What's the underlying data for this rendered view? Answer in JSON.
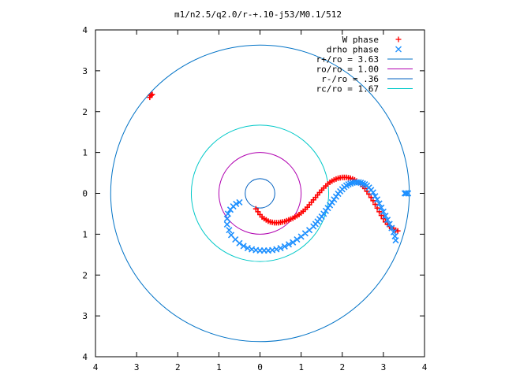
{
  "chart_data": {
    "type": "scatter",
    "title": "m1/n2.5/q2.0/r-+.10-j53/M0.1/512",
    "xlim": [
      -4,
      4
    ],
    "ylim": [
      -4,
      4
    ],
    "x_ticks": [
      -4,
      -3,
      -2,
      -1,
      0,
      1,
      2,
      3,
      4
    ],
    "y_ticks": [
      -4,
      -3,
      -2,
      -1,
      0,
      1,
      2,
      3,
      4
    ],
    "x_tick_labels": [
      "4",
      "3",
      "2",
      "1",
      "0",
      "1",
      "2",
      "3",
      "4"
    ],
    "y_tick_labels": [
      "4",
      "3",
      "2",
      "1",
      "0",
      "1",
      "2",
      "3",
      "4"
    ],
    "grid": false,
    "legend_position": "top-right",
    "legend": [
      {
        "label": "W phase",
        "marker": "+",
        "color": "#ff0000"
      },
      {
        "label": "drho phase",
        "marker": "x",
        "color": "#1e90ff"
      },
      {
        "label": "r+/ro = 3.63",
        "line": true,
        "color": "#0072c6"
      },
      {
        "label": "ro/ro = 1.00",
        "line": true,
        "color": "#b000b0"
      },
      {
        "label": "r-/ro = .36",
        "line": true,
        "color": "#0060c0"
      },
      {
        "label": "rc/ro = 1.67",
        "line": true,
        "color": "#00c8c8"
      }
    ],
    "circles": [
      {
        "name": "r+/ro = 3.63",
        "radius": 3.63,
        "color": "#0072c6"
      },
      {
        "name": "ro/ro = 1.00",
        "radius": 1.0,
        "color": "#b000b0"
      },
      {
        "name": "r-/ro = .36",
        "radius": 0.36,
        "color": "#0060c0"
      },
      {
        "name": "rc/ro = 1.67",
        "radius": 1.67,
        "color": "#00c8c8"
      }
    ],
    "series": [
      {
        "name": "W phase",
        "marker": "+",
        "color": "#ff0000",
        "x": [
          -2.65,
          -2.68,
          -2.62,
          -0.1,
          -0.05,
          0.0,
          0.05,
          0.1,
          0.15,
          0.2,
          0.25,
          0.3,
          0.35,
          0.4,
          0.45,
          0.5,
          0.55,
          0.6,
          0.65,
          0.7,
          0.75,
          0.8,
          0.85,
          0.9,
          0.95,
          1.0,
          1.05,
          1.1,
          1.15,
          1.2,
          1.25,
          1.3,
          1.35,
          1.4,
          1.45,
          1.5,
          1.55,
          1.6,
          1.65,
          1.7,
          1.75,
          1.8,
          1.85,
          1.9,
          1.95,
          2.0,
          2.05,
          2.1,
          2.15,
          2.2,
          2.25,
          2.3,
          2.35,
          2.4,
          2.45,
          2.5,
          2.55,
          2.6,
          2.65,
          2.7,
          2.75,
          2.8,
          2.85,
          2.9,
          2.95,
          3.0,
          3.05,
          3.1,
          3.15,
          3.2,
          3.25,
          3.3,
          3.35
        ],
        "y": [
          2.4,
          2.35,
          2.42,
          -0.38,
          -0.45,
          -0.52,
          -0.58,
          -0.62,
          -0.65,
          -0.68,
          -0.7,
          -0.71,
          -0.72,
          -0.72,
          -0.72,
          -0.71,
          -0.7,
          -0.69,
          -0.67,
          -0.65,
          -0.63,
          -0.61,
          -0.58,
          -0.55,
          -0.52,
          -0.48,
          -0.44,
          -0.39,
          -0.34,
          -0.28,
          -0.22,
          -0.16,
          -0.1,
          -0.04,
          0.02,
          0.08,
          0.13,
          0.18,
          0.23,
          0.27,
          0.3,
          0.33,
          0.35,
          0.37,
          0.38,
          0.39,
          0.39,
          0.39,
          0.38,
          0.37,
          0.35,
          0.33,
          0.3,
          0.26,
          0.22,
          0.17,
          0.12,
          0.05,
          -0.02,
          -0.1,
          -0.18,
          -0.27,
          -0.36,
          -0.45,
          -0.54,
          -0.62,
          -0.7,
          -0.76,
          -0.81,
          -0.85,
          -0.88,
          -0.9,
          -0.92
        ]
      },
      {
        "name": "drho phase",
        "marker": "x",
        "color": "#1e90ff",
        "x": [
          3.55,
          3.6,
          3.52,
          3.3,
          3.28,
          3.25,
          3.2,
          3.15,
          3.1,
          3.05,
          3.0,
          2.95,
          2.9,
          2.85,
          2.8,
          2.75,
          2.7,
          2.65,
          2.6,
          2.55,
          2.5,
          2.45,
          2.4,
          2.35,
          2.3,
          2.25,
          2.2,
          2.15,
          2.1,
          2.05,
          2.0,
          1.95,
          1.9,
          1.85,
          1.8,
          1.75,
          1.7,
          1.65,
          1.6,
          1.55,
          1.5,
          1.45,
          1.4,
          1.35,
          1.3,
          1.2,
          1.1,
          1.0,
          0.9,
          0.8,
          0.7,
          0.6,
          0.5,
          0.4,
          0.3,
          0.2,
          0.1,
          0.0,
          -0.1,
          -0.2,
          -0.3,
          -0.4,
          -0.5,
          -0.6,
          -0.7,
          -0.75,
          -0.8,
          -0.8,
          -0.78,
          -0.72,
          -0.65,
          -0.58,
          -0.5
        ],
        "y": [
          0.0,
          0.0,
          0.0,
          -1.15,
          -1.05,
          -0.95,
          -0.85,
          -0.75,
          -0.65,
          -0.55,
          -0.45,
          -0.35,
          -0.25,
          -0.15,
          -0.07,
          0.02,
          0.08,
          0.14,
          0.19,
          0.22,
          0.24,
          0.26,
          0.27,
          0.27,
          0.27,
          0.26,
          0.24,
          0.22,
          0.19,
          0.15,
          0.1,
          0.05,
          -0.01,
          -0.08,
          -0.15,
          -0.22,
          -0.29,
          -0.36,
          -0.43,
          -0.5,
          -0.57,
          -0.63,
          -0.69,
          -0.75,
          -0.81,
          -0.9,
          -0.98,
          -1.06,
          -1.13,
          -1.2,
          -1.25,
          -1.3,
          -1.34,
          -1.37,
          -1.39,
          -1.4,
          -1.4,
          -1.4,
          -1.39,
          -1.37,
          -1.34,
          -1.29,
          -1.22,
          -1.13,
          -1.02,
          -0.9,
          -0.76,
          -0.62,
          -0.5,
          -0.4,
          -0.32,
          -0.26,
          -0.22
        ]
      }
    ]
  }
}
